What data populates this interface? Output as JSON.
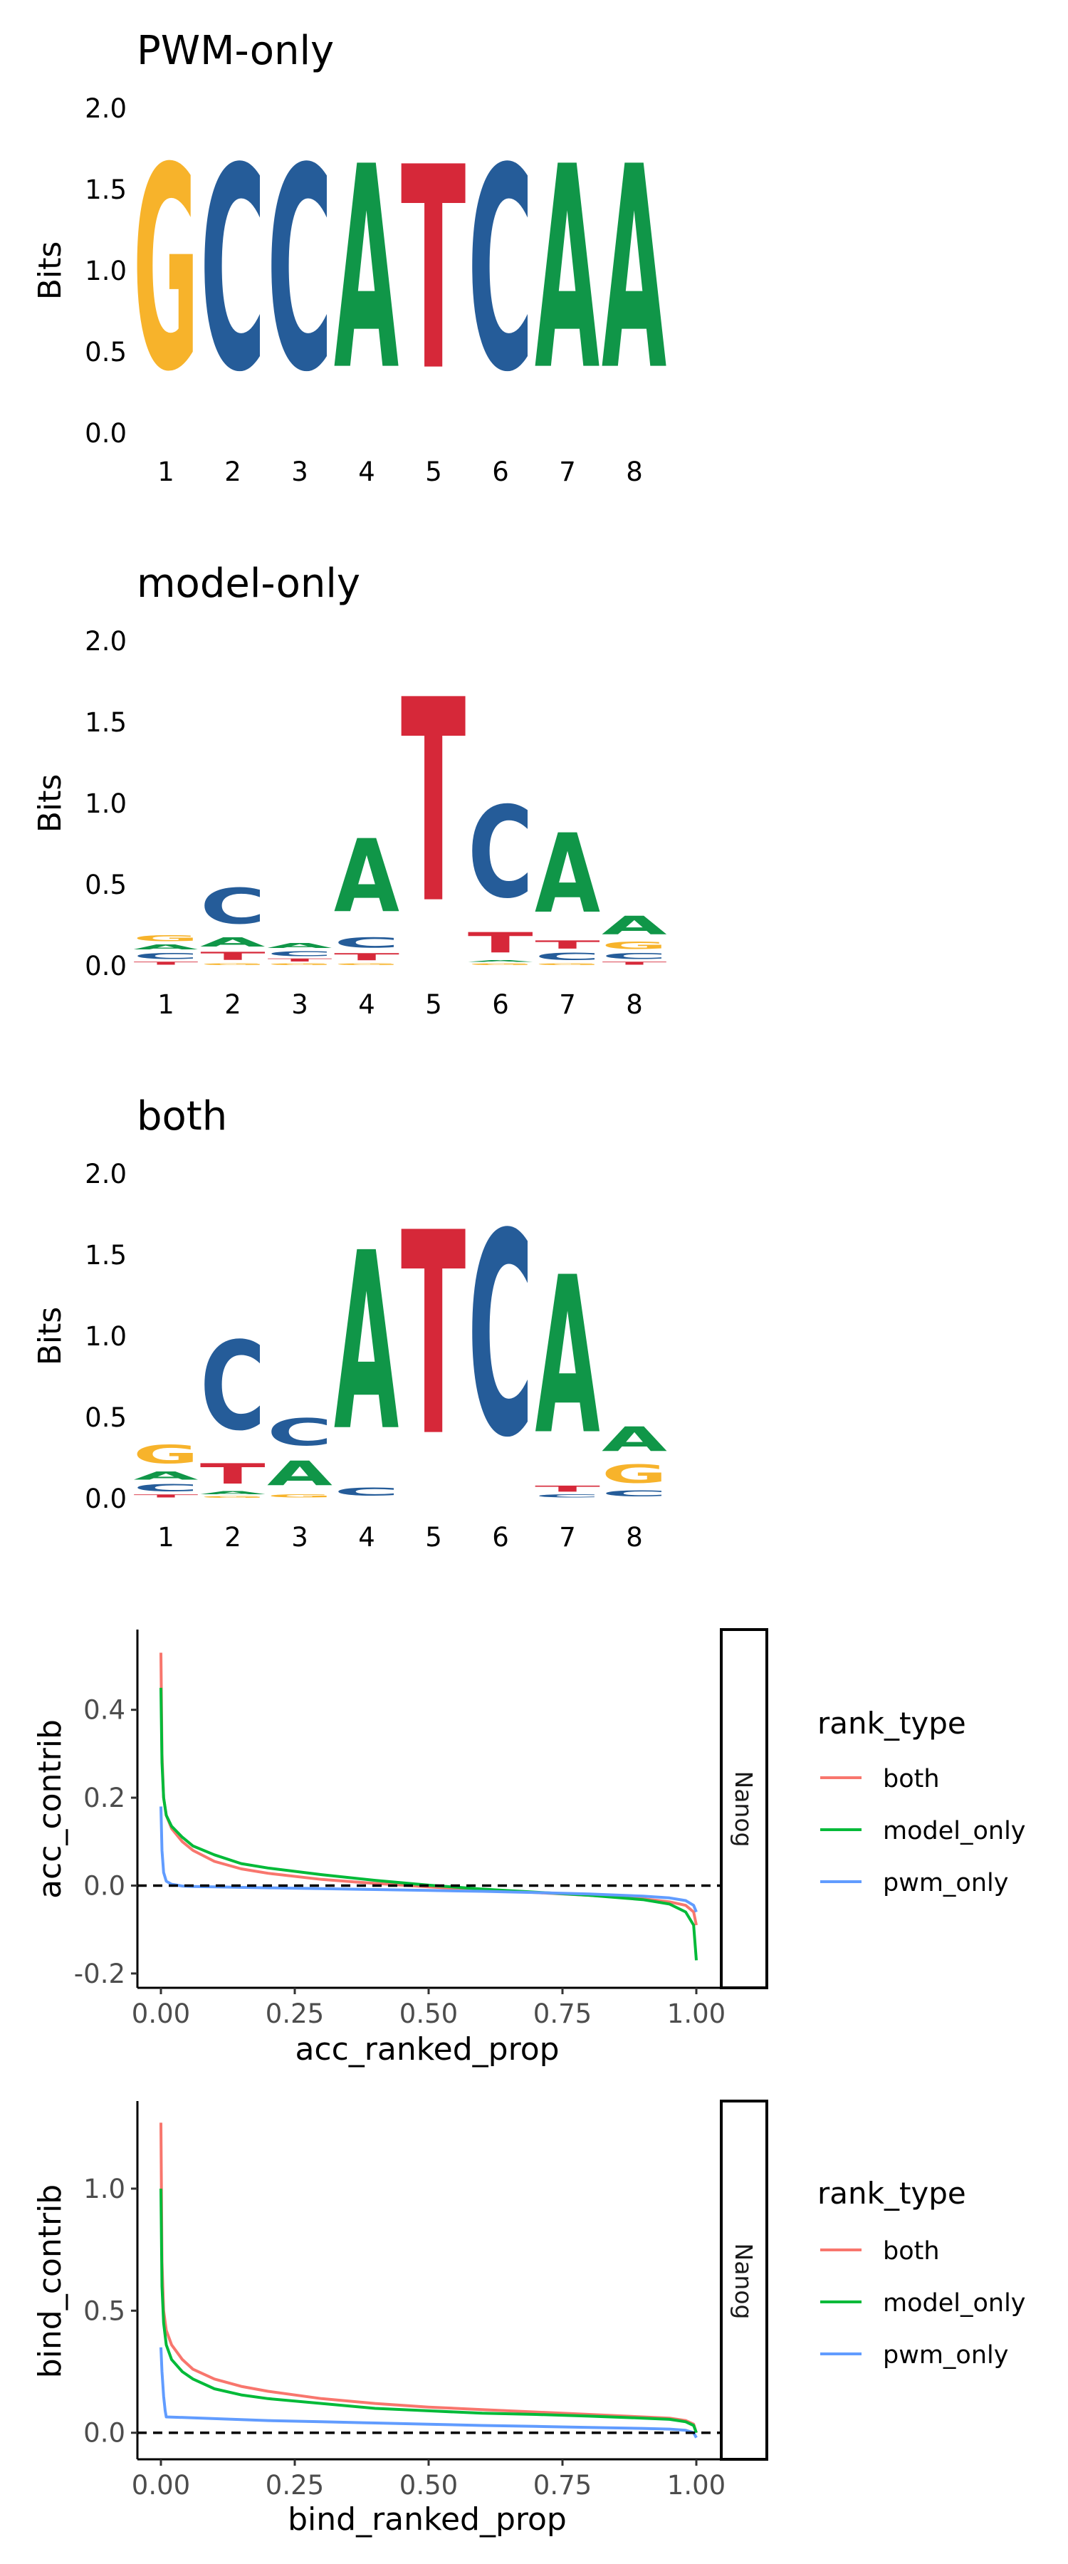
{
  "colors": {
    "A": "#109648",
    "C": "#255c99",
    "G": "#f7b32b",
    "T": "#d62839",
    "both": "#f8766d",
    "model_only": "#00ba38",
    "pwm_only": "#619cff"
  },
  "chart_data": [
    {
      "type": "sequence-logo",
      "title": "PWM-only",
      "ylabel": "Bits",
      "ylim": [
        0,
        2
      ],
      "yticks": [
        "0.0",
        "0.5",
        "1.0",
        "1.5",
        "2.0"
      ],
      "positions": [
        "1",
        "2",
        "3",
        "4",
        "5",
        "6",
        "7",
        "8"
      ],
      "columns": [
        [
          [
            "G",
            2.0
          ]
        ],
        [
          [
            "C",
            2.0
          ]
        ],
        [
          [
            "C",
            2.0
          ]
        ],
        [
          [
            "A",
            2.0
          ]
        ],
        [
          [
            "T",
            2.0
          ]
        ],
        [
          [
            "C",
            2.0
          ]
        ],
        [
          [
            "A",
            2.0
          ]
        ],
        [
          [
            "A",
            2.0
          ]
        ]
      ]
    },
    {
      "type": "sequence-logo",
      "title": "model-only",
      "ylabel": "Bits",
      "ylim": [
        0,
        2
      ],
      "yticks": [
        "0.0",
        "0.5",
        "1.0",
        "1.5",
        "2.0"
      ],
      "positions": [
        "1",
        "2",
        "3",
        "4",
        "5",
        "6",
        "7",
        "8"
      ],
      "columns": [
        [
          [
            "T",
            0.03
          ],
          [
            "C",
            0.06
          ],
          [
            "A",
            0.05
          ],
          [
            "G",
            0.06
          ]
        ],
        [
          [
            "G",
            0.02
          ],
          [
            "T",
            0.08
          ],
          [
            "A",
            0.09
          ],
          [
            "C",
            0.35
          ]
        ],
        [
          [
            "G",
            0.02
          ],
          [
            "T",
            0.03
          ],
          [
            "C",
            0.05
          ],
          [
            "A",
            0.05
          ]
        ],
        [
          [
            "G",
            0.02
          ],
          [
            "T",
            0.07
          ],
          [
            "C",
            0.1
          ],
          [
            "A",
            0.72
          ]
        ],
        [
          [
            "T",
            2.0
          ]
        ],
        [
          [
            "G",
            0.02
          ],
          [
            "A",
            0.02
          ],
          [
            "T",
            0.2
          ],
          [
            "C",
            0.9
          ]
        ],
        [
          [
            "G",
            0.02
          ],
          [
            "C",
            0.07
          ],
          [
            "T",
            0.08
          ],
          [
            "A",
            0.78
          ]
        ],
        [
          [
            "T",
            0.03
          ],
          [
            "C",
            0.06
          ],
          [
            "G",
            0.07
          ],
          [
            "A",
            0.18
          ]
        ]
      ]
    },
    {
      "type": "sequence-logo",
      "title": "both",
      "ylabel": "Bits",
      "ylim": [
        0,
        2
      ],
      "yticks": [
        "0.0",
        "0.5",
        "1.0",
        "1.5",
        "2.0"
      ],
      "positions": [
        "1",
        "2",
        "3",
        "4",
        "5",
        "6",
        "7",
        "8"
      ],
      "columns": [
        [
          [
            "T",
            0.03
          ],
          [
            "C",
            0.07
          ],
          [
            "A",
            0.08
          ],
          [
            "G",
            0.18
          ]
        ],
        [
          [
            "G",
            0.02
          ],
          [
            "A",
            0.03
          ],
          [
            "T",
            0.2
          ],
          [
            "C",
            0.87
          ]
        ],
        [
          [
            "G",
            0.03
          ],
          [
            "A",
            0.24
          ],
          [
            "C",
            0.27
          ]
        ],
        [
          [
            "C",
            0.08
          ],
          [
            "A",
            1.75
          ]
        ],
        [
          [
            "T",
            2.0
          ]
        ],
        [
          [
            "C",
            2.0
          ]
        ],
        [
          [
            "C",
            0.03
          ],
          [
            "T",
            0.06
          ],
          [
            "A",
            1.55
          ]
        ],
        [
          [
            "C",
            0.06
          ],
          [
            "G",
            0.18
          ],
          [
            "A",
            0.24
          ]
        ]
      ]
    },
    {
      "type": "line",
      "facet": "Nanog",
      "xlabel": "acc_ranked_prop",
      "ylabel": "acc_contrib",
      "xlim": [
        0,
        1
      ],
      "ylim": [
        -0.2,
        0.55
      ],
      "xticks": [
        "0.00",
        "0.25",
        "0.50",
        "0.75",
        "1.00"
      ],
      "yticks": [
        "-0.2",
        "0.0",
        "0.2",
        "0.4"
      ],
      "reference_line": 0,
      "legend": {
        "title": "rank_type",
        "position": "right"
      },
      "series": [
        {
          "name": "both",
          "key": "both",
          "x": [
            0,
            0.002,
            0.005,
            0.01,
            0.02,
            0.04,
            0.06,
            0.1,
            0.15,
            0.2,
            0.3,
            0.4,
            0.5,
            0.6,
            0.7,
            0.8,
            0.9,
            0.95,
            0.98,
            0.995,
            1.0
          ],
          "y": [
            0.53,
            0.3,
            0.2,
            0.16,
            0.13,
            0.1,
            0.08,
            0.055,
            0.038,
            0.028,
            0.014,
            0.005,
            -0.003,
            -0.01,
            -0.016,
            -0.022,
            -0.03,
            -0.037,
            -0.045,
            -0.06,
            -0.09
          ]
        },
        {
          "name": "model_only",
          "key": "model_only",
          "x": [
            0,
            0.002,
            0.005,
            0.01,
            0.02,
            0.04,
            0.06,
            0.1,
            0.15,
            0.2,
            0.3,
            0.4,
            0.5,
            0.6,
            0.7,
            0.8,
            0.9,
            0.95,
            0.98,
            0.995,
            1.0
          ],
          "y": [
            0.45,
            0.28,
            0.2,
            0.16,
            0.135,
            0.11,
            0.09,
            0.07,
            0.05,
            0.04,
            0.025,
            0.012,
            0.001,
            -0.008,
            -0.015,
            -0.022,
            -0.032,
            -0.042,
            -0.06,
            -0.09,
            -0.17
          ]
        },
        {
          "name": "pwm_only",
          "key": "pwm_only",
          "x": [
            0,
            0.002,
            0.005,
            0.01,
            0.02,
            0.04,
            0.06,
            0.1,
            0.2,
            0.3,
            0.4,
            0.5,
            0.6,
            0.7,
            0.8,
            0.9,
            0.95,
            0.98,
            0.995,
            1.0
          ],
          "y": [
            0.18,
            0.08,
            0.03,
            0.01,
            0.003,
            -0.001,
            -0.002,
            -0.003,
            -0.005,
            -0.007,
            -0.009,
            -0.011,
            -0.013,
            -0.016,
            -0.019,
            -0.024,
            -0.028,
            -0.034,
            -0.045,
            -0.06
          ]
        }
      ]
    },
    {
      "type": "line",
      "facet": "Nanog",
      "xlabel": "bind_ranked_prop",
      "ylabel": "bind_contrib",
      "xlim": [
        0,
        1
      ],
      "ylim": [
        -0.05,
        1.3
      ],
      "xticks": [
        "0.00",
        "0.25",
        "0.50",
        "0.75",
        "1.00"
      ],
      "yticks": [
        "0.0",
        "0.5",
        "1.0"
      ],
      "reference_line": 0,
      "legend": {
        "title": "rank_type",
        "position": "right"
      },
      "series": [
        {
          "name": "both",
          "key": "both",
          "x": [
            0,
            0.002,
            0.005,
            0.01,
            0.02,
            0.04,
            0.06,
            0.1,
            0.15,
            0.2,
            0.3,
            0.4,
            0.5,
            0.6,
            0.7,
            0.8,
            0.9,
            0.95,
            0.98,
            0.995,
            1.0
          ],
          "y": [
            1.27,
            0.7,
            0.5,
            0.42,
            0.36,
            0.3,
            0.26,
            0.22,
            0.19,
            0.17,
            0.14,
            0.12,
            0.105,
            0.095,
            0.085,
            0.075,
            0.065,
            0.06,
            0.05,
            0.035,
            0.0
          ]
        },
        {
          "name": "model_only",
          "key": "model_only",
          "x": [
            0,
            0.002,
            0.005,
            0.01,
            0.02,
            0.04,
            0.06,
            0.1,
            0.15,
            0.2,
            0.3,
            0.4,
            0.5,
            0.6,
            0.7,
            0.8,
            0.9,
            0.95,
            0.98,
            0.995,
            1.0
          ],
          "y": [
            1.0,
            0.6,
            0.45,
            0.36,
            0.3,
            0.25,
            0.22,
            0.18,
            0.155,
            0.14,
            0.12,
            0.1,
            0.09,
            0.08,
            0.075,
            0.068,
            0.06,
            0.055,
            0.045,
            0.03,
            0.0
          ]
        },
        {
          "name": "pwm_only",
          "key": "pwm_only",
          "x": [
            0,
            0.002,
            0.005,
            0.008,
            0.01,
            0.05,
            0.1,
            0.2,
            0.3,
            0.4,
            0.5,
            0.6,
            0.7,
            0.8,
            0.9,
            0.95,
            0.98,
            0.995,
            1.0
          ],
          "y": [
            0.35,
            0.25,
            0.15,
            0.09,
            0.065,
            0.062,
            0.058,
            0.05,
            0.045,
            0.04,
            0.035,
            0.03,
            0.026,
            0.022,
            0.018,
            0.015,
            0.01,
            0.0,
            -0.02
          ]
        }
      ]
    }
  ]
}
